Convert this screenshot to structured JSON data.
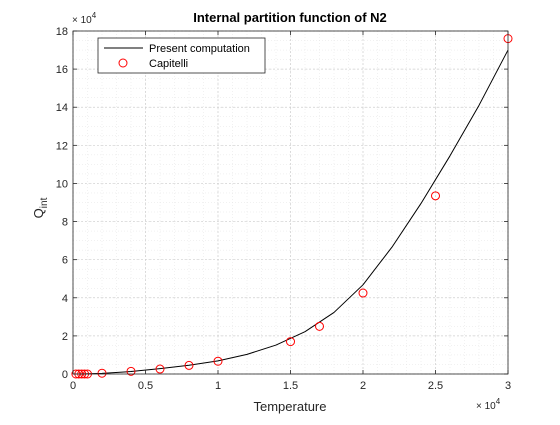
{
  "chart_data": {
    "type": "line",
    "title": "Internal partition function of N2",
    "xlabel": "Temperature",
    "ylabel_main": "Q",
    "ylabel_sub": "int",
    "xlim": [
      0,
      30000
    ],
    "ylim": [
      0,
      180000
    ],
    "x_ticks": [
      0,
      5000,
      10000,
      15000,
      20000,
      25000,
      30000
    ],
    "x_tick_labels": [
      "0",
      "0.5",
      "1",
      "1.5",
      "2",
      "2.5",
      "3"
    ],
    "y_ticks": [
      0,
      20000,
      40000,
      60000,
      80000,
      100000,
      120000,
      140000,
      160000,
      180000
    ],
    "y_tick_labels": [
      "0",
      "2",
      "4",
      "6",
      "8",
      "10",
      "12",
      "14",
      "16",
      "18"
    ],
    "x_exponent": "4",
    "y_exponent": "4",
    "exponent_base": "× 10",
    "grid": true,
    "minor_grid": true,
    "legend_position": "top-left",
    "series": [
      {
        "name": "Present computation",
        "style": "line",
        "color": "#000000",
        "x": [
          500,
          2000,
          4000,
          6000,
          8000,
          10000,
          12000,
          14000,
          16000,
          18000,
          20000,
          22000,
          24000,
          26000,
          28000,
          30000
        ],
        "y": [
          10,
          350,
          1300,
          2800,
          4600,
          6900,
          10300,
          15200,
          22200,
          32300,
          46800,
          66600,
          89500,
          114500,
          141000,
          170000
        ]
      },
      {
        "name": "Capitelli",
        "style": "markers",
        "marker": "open-circle",
        "color": "#ff0000",
        "x": [
          200,
          400,
          600,
          800,
          1000,
          2000,
          4000,
          6000,
          8000,
          10000,
          15000,
          17000,
          20000,
          25000,
          30000
        ],
        "y": [
          0,
          0,
          0,
          0,
          0,
          400,
          1400,
          2600,
          4500,
          6700,
          17000,
          25000,
          42500,
          93500,
          176000
        ]
      }
    ]
  }
}
